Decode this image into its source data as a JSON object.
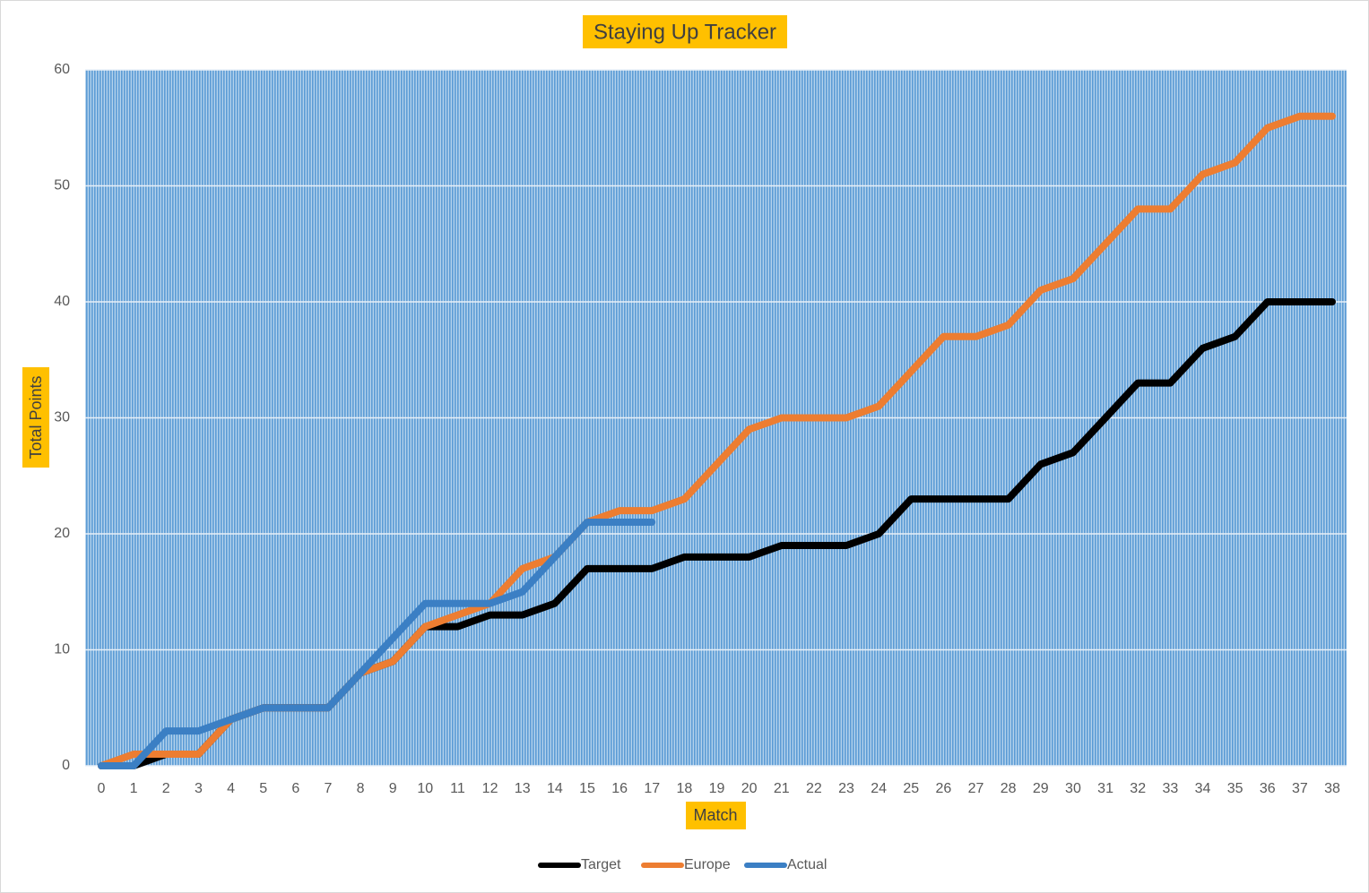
{
  "chart_data": {
    "type": "line",
    "title": "Staying Up Tracker",
    "x_label": "Match",
    "y_label": "Total Points",
    "categories": [
      "0",
      "1",
      "2",
      "3",
      "4",
      "5",
      "6",
      "7",
      "8",
      "9",
      "10",
      "11",
      "12",
      "13",
      "14",
      "15",
      "16",
      "17",
      "18",
      "19",
      "20",
      "21",
      "22",
      "23",
      "24",
      "25",
      "26",
      "27",
      "28",
      "29",
      "30",
      "31",
      "32",
      "33",
      "34",
      "35",
      "36",
      "37",
      "38"
    ],
    "series": [
      {
        "name": "Target",
        "color": "#000000",
        "values": [
          0,
          0,
          1,
          1,
          4,
          5,
          5,
          5,
          8,
          9,
          12,
          12,
          13,
          13,
          14,
          17,
          17,
          17,
          18,
          18,
          18,
          19,
          19,
          19,
          20,
          23,
          23,
          23,
          23,
          26,
          27,
          30,
          33,
          33,
          36,
          37,
          40,
          40,
          40
        ]
      },
      {
        "name": "Europe",
        "color": "#ed7d31",
        "values": [
          0,
          1,
          1,
          1,
          4,
          5,
          5,
          5,
          8,
          9,
          12,
          13,
          14,
          17,
          18,
          21,
          22,
          22,
          23,
          26,
          29,
          30,
          30,
          30,
          31,
          34,
          37,
          37,
          38,
          41,
          42,
          45,
          48,
          48,
          51,
          52,
          55,
          56,
          56
        ]
      },
      {
        "name": "Actual",
        "color": "#3b7fc4",
        "values": [
          0,
          0,
          3,
          3,
          4,
          5,
          5,
          5,
          8,
          11,
          14,
          14,
          14,
          15,
          18,
          21,
          21,
          21,
          null,
          null,
          null,
          null,
          null,
          null,
          null,
          null,
          null,
          null,
          null,
          null,
          null,
          null,
          null,
          null,
          null,
          null,
          null,
          null,
          null
        ]
      }
    ],
    "ylim": [
      0,
      60
    ],
    "yticks": [
      0,
      10,
      20,
      30,
      40,
      50,
      60
    ],
    "grid": true,
    "legend": "bottom"
  }
}
